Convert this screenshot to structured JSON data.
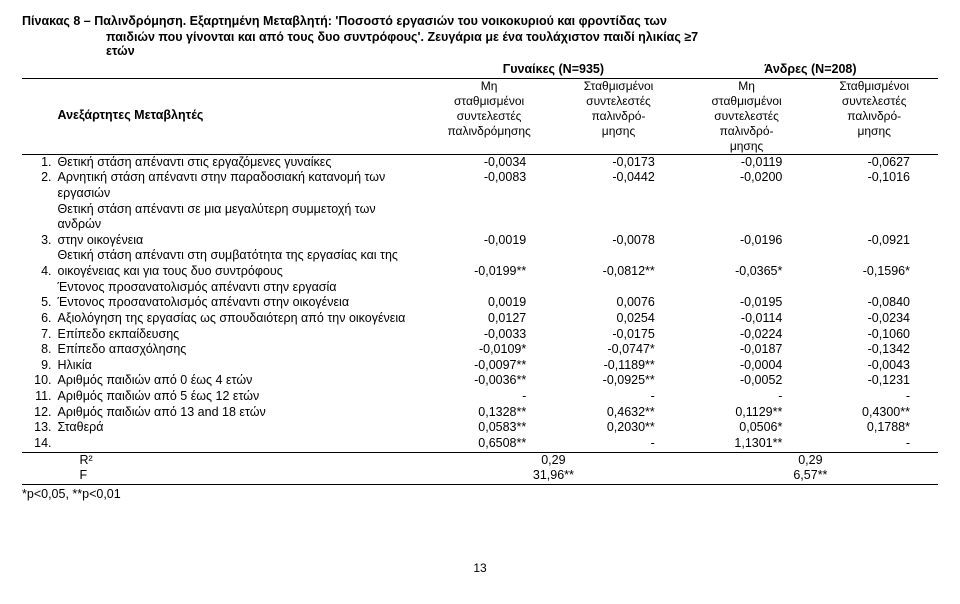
{
  "title_line1": "Πίνακας 8 – Παλινδρόμηση. Εξαρτημένη Μεταβλητή: 'Ποσοστό εργασιών του νοικοκυριού και φροντίδας των",
  "title_line2": "παιδιών που γίνονται και από τους δυο συντρόφους'. Ζευγάρια με ένα τουλάχιστον παιδί ηλικίας ≥7",
  "title_line3": "ετών",
  "left_label": "Ανεξάρτητες Μεταβλητές",
  "group_women": "Γυναίκες (N=935)",
  "group_men": "Άνδρες (N=208)",
  "sub_unw": "Μη\nσταθμισμένοι\nσυντελεστές\nπαλινδρόμησης",
  "sub_w": "Σταθμισμένοι\nσυντελεστές\nπαλινδρό-\nμησης",
  "sub_unw2": "Μη\nσταθμισμένοι\nσυντελεστές\nπαλινδρό-\nμησης",
  "sub_w2": "Σταθμισμένοι\nσυντελεστές\nπαλινδρό-\nμησης",
  "rows": [
    {
      "n": "1.",
      "label": "Θετική στάση απέναντι στις εργαζόμενες γυναίκες",
      "v": [
        "-0,0034",
        "-0,0173",
        "-0,0119",
        "-0,0627"
      ]
    },
    {
      "n": "2.",
      "label": "Αρνητική στάση απέναντι στην παραδοσιακή κατανομή των εργασιών",
      "v": [
        "-0,0083",
        "-0,0442",
        "-0,0200",
        "-0,1016"
      ]
    },
    {
      "n": "",
      "label": "Θετική στάση απέναντι σε μια μεγαλύτερη συμμετοχή των ανδρών",
      "v": [
        "",
        "",
        "",
        ""
      ]
    },
    {
      "n": "3.",
      "label": "στην οικογένεια",
      "v": [
        "-0,0019",
        "-0,0078",
        "-0,0196",
        "-0,0921"
      ]
    },
    {
      "n": "",
      "label": "Θετική στάση απέναντι στη συμβατότητα της εργασίας και της",
      "v": [
        "",
        "",
        "",
        ""
      ]
    },
    {
      "n": "4.",
      "label": "οικογένειας και για τους δυο συντρόφους",
      "v": [
        "-0,0199**",
        "-0,0812**",
        "-0,0365*",
        "-0,1596*"
      ]
    },
    {
      "n": "",
      "label": "Έντονος προσανατολισμός απέναντι στην εργασία",
      "v": [
        "",
        "",
        "",
        ""
      ]
    },
    {
      "n": "5.",
      "label": "Έντονος προσανατολισμός απέναντι στην οικογένεια",
      "v": [
        "0,0019",
        "0,0076",
        "-0,0195",
        "-0,0840"
      ]
    },
    {
      "n": "6.",
      "label": "Αξιολόγηση της εργασίας ως σπουδαιότερη από την οικογένεια",
      "v": [
        "0,0127",
        "0,0254",
        "-0,0114",
        "-0,0234"
      ]
    },
    {
      "n": "7.",
      "label": "Επίπεδο εκπαίδευσης",
      "v": [
        "-0,0033",
        "-0,0175",
        "-0,0224",
        "-0,1060"
      ]
    },
    {
      "n": "8.",
      "label": "Επίπεδο απασχόλησης",
      "v": [
        "-0,0109*",
        "-0,0747*",
        "-0,0187",
        "-0,1342"
      ]
    },
    {
      "n": "9.",
      "label": "Ηλικία",
      "v": [
        "-0,0097**",
        "-0,1189**",
        "-0,0004",
        "-0,0043"
      ]
    },
    {
      "n": "10.",
      "label": "Αριθμός παιδιών από 0 έως 4 ετών",
      "v": [
        "-0,0036**",
        "-0,0925**",
        "-0,0052",
        "-0,1231"
      ]
    },
    {
      "n": "11.",
      "label": "Αριθμός παιδιών από 5 έως 12 ετών",
      "v": [
        "-",
        "-",
        "-",
        "-"
      ]
    },
    {
      "n": "12.",
      "label": "Αριθμός παιδιών από 13 and 18 ετών",
      "v": [
        "0,1328**",
        "0,4632**",
        "0,1129**",
        "0,4300**"
      ]
    },
    {
      "n": "13.",
      "label": "Σταθερά",
      "v": [
        "0,0583**",
        "0,2030**",
        "0,0506*",
        "0,1788*"
      ]
    },
    {
      "n": "14.",
      "label": "",
      "v": [
        "0,6508**",
        "-",
        "1,1301**",
        "-"
      ]
    }
  ],
  "r2_label": "R²",
  "r2_w": "0,29",
  "r2_m": "0,29",
  "f_label": "F",
  "f_w": "31,96**",
  "f_m": "6,57**",
  "footnote": "*p<0,05, **p<0,01",
  "page": "13"
}
